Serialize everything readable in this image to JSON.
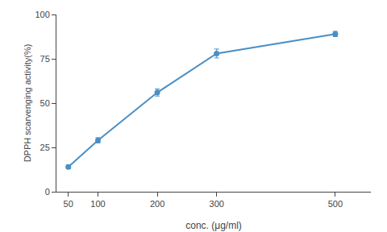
{
  "chart_data": {
    "type": "line",
    "xlabel": "conc. (μg/ml)",
    "ylabel": "DPPH scarvenging activity(%)",
    "x": [
      50,
      100,
      200,
      300,
      500
    ],
    "values": [
      14,
      29,
      56,
      78,
      89
    ],
    "yerr": [
      1.0,
      1.5,
      2.0,
      2.5,
      1.5
    ],
    "color": "#4a8fc4",
    "marker": "circle",
    "line_style": "solid",
    "xlim": [
      30,
      560
    ],
    "ylim": [
      0,
      100
    ],
    "xticks": [
      50,
      100,
      200,
      300,
      500
    ],
    "yticks": [
      0,
      25,
      50,
      75,
      100
    ],
    "grid": false
  }
}
